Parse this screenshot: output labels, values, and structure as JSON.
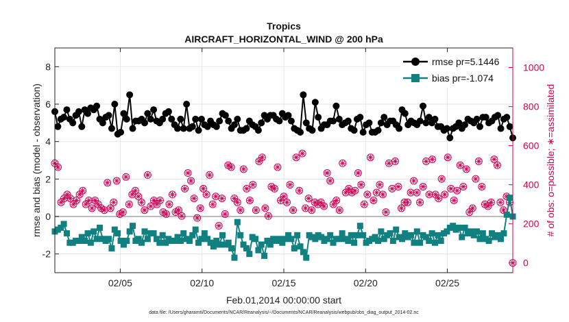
{
  "chart_data": {
    "type": "line",
    "title": "Tropics",
    "subtitle": "AIRCRAFT_HORIZONTAL_WIND @ 200 hPa",
    "xlabel": "Feb.01,2014 00:00:00 start",
    "ylabel_left": "rmse and bias (model - observation)",
    "ylabel_right": "# of obs: o=possible; ∗=assimilated",
    "footnote": "data file: /Users/gharamti/Documents/NCAR/Reanalysis/~/Documents/NCAR/Reanalysis/webpub/obs_diag_output_2014-02.nc",
    "xlim": [
      1,
      29
    ],
    "x_ticks": [
      5,
      10,
      15,
      20,
      25
    ],
    "x_tick_labels": [
      "02/05",
      "02/10",
      "02/15",
      "02/20",
      "02/25"
    ],
    "ylim_left": [
      -3,
      9
    ],
    "y_ticks_left": [
      -2,
      0,
      2,
      4,
      6,
      8
    ],
    "ylim_right": [
      -50,
      1100
    ],
    "y_ticks_right": [
      0,
      200,
      400,
      600,
      800,
      1000
    ],
    "grid": true,
    "legend_position": "top-right",
    "zero_line": 0,
    "colors": {
      "rmse": "#000000",
      "bias": "#118080",
      "obs": "#cc0055",
      "zero": "#bbbbbb",
      "grid": "#e6e6e6"
    },
    "series": [
      {
        "name": "rmse pr=5.1446",
        "axis": "left",
        "values": [
          5.6,
          4.8,
          5.2,
          5.3,
          5.7,
          5.2,
          5.0,
          5.4,
          5.6,
          4.8,
          5.7,
          5.5,
          5.8,
          5.7,
          5.9,
          5.2,
          5.0,
          5.3,
          5.4,
          4.7,
          6.0,
          4.4,
          4.5,
          5.5,
          5.2,
          6.5,
          4.7,
          5.1,
          5.1,
          5.2,
          5.0,
          5.5,
          5.2,
          5.7,
          5.1,
          5.0,
          5.2,
          5.5,
          5.6,
          5.2,
          4.9,
          4.7,
          5.2,
          4.7,
          6.0,
          4.7,
          4.8,
          5.2,
          4.6,
          5.2,
          4.9,
          4.8,
          5.1,
          4.9,
          4.8,
          5.1,
          5.5,
          5.4,
          5.1,
          4.7,
          4.9,
          5.2,
          4.6,
          4.6,
          4.7,
          5.1,
          4.9,
          4.8,
          4.6,
          5.0,
          5.4,
          5.2,
          5.4,
          5.4,
          5.2,
          5.1,
          5.5,
          5.3,
          5.4,
          5.1,
          4.7,
          4.6,
          4.5,
          6.5,
          5.0,
          4.7,
          4.6,
          6.1,
          5.3,
          4.7,
          4.9,
          4.9,
          5.1,
          5.1,
          5.9,
          5.2,
          4.9,
          5.0,
          5.1,
          4.7,
          4.6,
          5.2,
          5.3,
          4.5,
          4.9,
          5.0,
          4.5,
          4.5,
          4.6,
          5.0,
          5.3,
          4.9,
          5.1,
          5.1,
          4.9,
          4.7,
          5.7,
          5.5,
          4.9,
          5.1,
          5.0,
          4.9,
          5.1,
          5.9,
          5.0,
          5.3,
          5.0,
          5.2,
          4.8,
          4.8,
          4.6,
          4.7,
          4.2,
          4.7,
          4.8,
          5.0,
          4.7,
          4.9,
          5.2,
          5.1,
          5.0,
          5.2,
          4.8,
          5.3,
          5.3,
          5.0,
          5.1,
          5.3,
          5.4,
          4.7,
          5.2,
          5.3,
          4.8,
          4.2
        ]
      },
      {
        "name": "bias pr=-1.074",
        "axis": "left",
        "values": [
          -0.8,
          -0.7,
          -0.6,
          -0.4,
          -0.9,
          -1.4,
          -1.4,
          -1.3,
          -1.3,
          -1.1,
          -1.3,
          -0.9,
          -1.4,
          -0.8,
          -1.2,
          -0.6,
          -1.2,
          -1.3,
          -1.2,
          -1.7,
          -0.7,
          -0.9,
          -1.3,
          -1.5,
          -1.3,
          -0.8,
          -0.5,
          -1.3,
          -1.2,
          -1.4,
          -0.8,
          -1.2,
          -0.9,
          -0.9,
          -1.2,
          -1.4,
          -1.0,
          -1.4,
          -1.2,
          -1.3,
          -1.3,
          -1.1,
          -1.3,
          -0.9,
          -1.2,
          -1.3,
          -1.0,
          -0.7,
          -1.4,
          -1.2,
          -0.9,
          -1.2,
          -1.4,
          -1.6,
          -1.3,
          -1.5,
          -1.0,
          -1.5,
          -1.4,
          -1.7,
          -2.2,
          -0.3,
          -1.0,
          -1.5,
          -1.7,
          -2.0,
          -1.1,
          -1.2,
          -1.8,
          -1.5,
          -2.1,
          -1.3,
          -1.5,
          -1.2,
          -1.3,
          -1.2,
          -1.4,
          -1.2,
          -1.0,
          -1.2,
          -1.7,
          -1.0,
          -1.6,
          -1.9,
          -2.2,
          -1.0,
          -1.1,
          -1.2,
          -1.0,
          -1.1,
          -1.3,
          -1.2,
          -1.0,
          -1.4,
          -1.2,
          -1.2,
          -0.9,
          -1.2,
          -1.3,
          -1.0,
          -1.4,
          -1.0,
          -0.5,
          -1.0,
          -1.4,
          -1.3,
          -1.2,
          -1.1,
          -1.3,
          -0.8,
          -1.2,
          -1.0,
          -0.9,
          -1.3,
          -0.7,
          -1.1,
          -1.2,
          -0.9,
          -1.1,
          -1.0,
          -1.4,
          -0.8,
          -1.4,
          -1.0,
          -1.1,
          -1.3,
          -0.9,
          -1.4,
          -1.0,
          -1.3,
          -0.9,
          -0.8,
          -0.6,
          -0.5,
          -0.7,
          -0.6,
          -1.1,
          -0.6,
          -0.9,
          -0.8,
          -1.0,
          -0.8,
          -1.2,
          -0.9,
          -1.2,
          -1.3,
          -0.9,
          -1.1,
          -1.0,
          -1.2,
          -0.9,
          0.1,
          1.0,
          0.0
        ]
      },
      {
        "name": "possible obs",
        "axis": "right",
        "values": [
          510,
          490,
          310,
          330,
          350,
          330,
          300,
          320,
          350,
          370,
          300,
          320,
          280,
          320,
          300,
          280,
          270,
          410,
          280,
          310,
          420,
          250,
          260,
          440,
          300,
          350,
          370,
          340,
          310,
          270,
          450,
          290,
          320,
          300,
          320,
          260,
          250,
          300,
          350,
          260,
          270,
          240,
          380,
          460,
          420,
          330,
          230,
          280,
          380,
          350,
          450,
          300,
          340,
          190,
          330,
          250,
          500,
          490,
          330,
          310,
          270,
          480,
          380,
          320,
          400,
          270,
          520,
          540,
          280,
          240,
          390,
          380,
          490,
          320,
          340,
          310,
          400,
          270,
          540,
          370,
          560,
          280,
          330,
          270,
          310,
          300,
          310,
          290,
          460,
          420,
          300,
          320,
          270,
          510,
          360,
          380,
          360,
          370,
          460,
          400,
          300,
          350,
          540,
          320,
          360,
          400,
          350,
          260,
          510,
          380,
          520,
          390,
          280,
          310,
          310,
          360,
          420,
          360,
          310,
          390,
          520,
          350,
          530,
          350,
          330,
          430,
          350,
          540,
          380,
          320,
          370,
          500,
          390,
          480,
          260,
          280,
          430,
          520,
          390,
          300,
          290,
          310,
          530,
          500,
          310,
          270,
          340,
          310,
          0
        ]
      }
    ]
  }
}
